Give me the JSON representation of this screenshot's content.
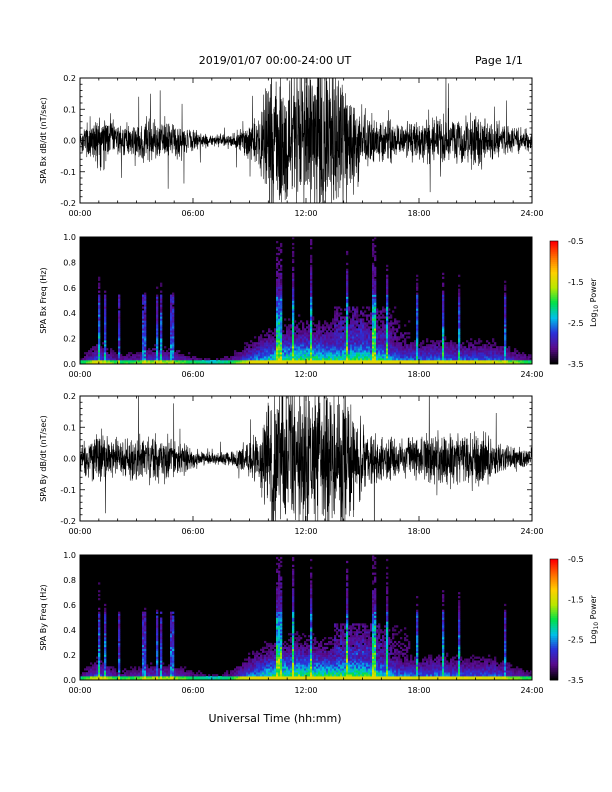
{
  "header": {
    "date_range": "2019/01/07  00:00-24:00 UT",
    "page": "Page 1/1"
  },
  "footer": {
    "xlabel": "Universal Time (hh:mm)"
  },
  "colorbar": {
    "label_main": "Log",
    "label_sub": "10",
    "label_rest": " Power",
    "ticks": [
      "-0.5",
      "-1.5",
      "-2.5",
      "-3.5"
    ],
    "tick_values": [
      -0.5,
      -1.5,
      -2.5,
      -3.5
    ],
    "range": [
      -3.5,
      -0.5
    ],
    "colors": [
      "#000000",
      "#5a0a8c",
      "#2a30d8",
      "#00c0e8",
      "#00e04a",
      "#b8e800",
      "#ffd000",
      "#ff7000",
      "#ff0000"
    ]
  },
  "chart_data": [
    {
      "type": "line",
      "title": "",
      "ylabel": "SPA Bx dB/dt (nT/sec)",
      "ylim": [
        -0.2,
        0.2
      ],
      "yticks": [
        "-0.2",
        "-0.1",
        "0.0",
        "0.1",
        "0.2"
      ],
      "ytick_values": [
        -0.2,
        -0.1,
        0.0,
        0.1,
        0.2
      ],
      "xlim": [
        0,
        24
      ],
      "xticks": [
        "00:00",
        "06:00",
        "12:00",
        "18:00",
        "24:00"
      ],
      "xtick_values": [
        0,
        6,
        12,
        18,
        24
      ],
      "series": [
        {
          "color": "#000000",
          "x_hours": [
            0,
            1,
            2,
            3,
            4,
            5,
            6,
            7,
            8,
            9,
            9.5,
            10,
            11,
            12,
            13,
            14,
            15,
            16,
            17,
            18,
            19,
            20,
            21,
            22,
            23,
            24
          ],
          "amplitude": [
            0.04,
            0.12,
            0.06,
            0.07,
            0.09,
            0.07,
            0.04,
            0.02,
            0.03,
            0.07,
            0.1,
            0.25,
            0.3,
            0.3,
            0.3,
            0.3,
            0.12,
            0.09,
            0.06,
            0.08,
            0.09,
            0.1,
            0.12,
            0.07,
            0.05,
            0.04
          ]
        }
      ]
    },
    {
      "type": "heatmap",
      "title": "",
      "ylabel": "SPA Bx Freq (Hz)",
      "ylim": [
        0,
        1.0
      ],
      "yticks": [
        "0.0",
        "0.2",
        "0.4",
        "0.6",
        "0.8",
        "1.0"
      ],
      "ytick_values": [
        0.0,
        0.2,
        0.4,
        0.6,
        0.8,
        1.0
      ],
      "xlim": [
        0,
        24
      ],
      "xticks": [
        "00:00",
        "06:00",
        "12:00",
        "18:00",
        "24:00"
      ],
      "xtick_values": [
        0,
        6,
        12,
        18,
        24
      ],
      "zlim": [
        -3.5,
        -0.5
      ],
      "activity": {
        "x_hours": [
          0,
          1,
          2,
          3,
          4,
          5,
          6,
          7,
          8,
          9,
          10,
          11,
          12,
          13,
          14,
          15,
          16,
          17,
          18,
          19,
          20,
          21,
          22,
          23,
          24
        ],
        "intensity": [
          0.25,
          0.55,
          0.3,
          0.35,
          0.45,
          0.4,
          0.3,
          0.2,
          0.3,
          0.55,
          0.75,
          0.85,
          0.9,
          0.85,
          0.85,
          0.9,
          0.8,
          0.6,
          0.55,
          0.6,
          0.55,
          0.55,
          0.55,
          0.4,
          0.3
        ]
      }
    },
    {
      "type": "line",
      "title": "",
      "ylabel": "SPA By dB/dt (nT/sec)",
      "ylim": [
        -0.2,
        0.2
      ],
      "yticks": [
        "-0.2",
        "-0.1",
        "0.0",
        "0.1",
        "0.2"
      ],
      "ytick_values": [
        -0.2,
        -0.1,
        0.0,
        0.1,
        0.2
      ],
      "xlim": [
        0,
        24
      ],
      "xticks": [
        "00:00",
        "06:00",
        "12:00",
        "18:00",
        "24:00"
      ],
      "xtick_values": [
        0,
        6,
        12,
        18,
        24
      ],
      "series": [
        {
          "color": "#000000",
          "x_hours": [
            0,
            1,
            2,
            3,
            4,
            5,
            6,
            7,
            8,
            9,
            9.5,
            10,
            11,
            12,
            13,
            14,
            15,
            16,
            17,
            18,
            19,
            20,
            21,
            22,
            23,
            24
          ],
          "amplitude": [
            0.05,
            0.12,
            0.07,
            0.08,
            0.09,
            0.08,
            0.04,
            0.02,
            0.03,
            0.07,
            0.1,
            0.25,
            0.3,
            0.3,
            0.3,
            0.3,
            0.12,
            0.1,
            0.07,
            0.09,
            0.1,
            0.11,
            0.12,
            0.07,
            0.05,
            0.04
          ]
        }
      ]
    },
    {
      "type": "heatmap",
      "title": "",
      "ylabel": "SPA By Freq (Hz)",
      "ylim": [
        0,
        1.0
      ],
      "yticks": [
        "0.0",
        "0.2",
        "0.4",
        "0.6",
        "0.8",
        "1.0"
      ],
      "ytick_values": [
        0.0,
        0.2,
        0.4,
        0.6,
        0.8,
        1.0
      ],
      "xlim": [
        0,
        24
      ],
      "xticks": [
        "00:00",
        "06:00",
        "12:00",
        "18:00",
        "24:00"
      ],
      "xtick_values": [
        0,
        6,
        12,
        18,
        24
      ],
      "zlim": [
        -3.5,
        -0.5
      ],
      "activity": {
        "x_hours": [
          0,
          1,
          2,
          3,
          4,
          5,
          6,
          7,
          8,
          9,
          10,
          11,
          12,
          13,
          14,
          15,
          16,
          17,
          18,
          19,
          20,
          21,
          22,
          23,
          24
        ],
        "intensity": [
          0.25,
          0.55,
          0.3,
          0.35,
          0.45,
          0.4,
          0.3,
          0.2,
          0.3,
          0.6,
          0.8,
          0.9,
          0.9,
          0.85,
          0.9,
          0.9,
          0.8,
          0.6,
          0.55,
          0.6,
          0.55,
          0.55,
          0.55,
          0.4,
          0.3
        ]
      }
    }
  ]
}
